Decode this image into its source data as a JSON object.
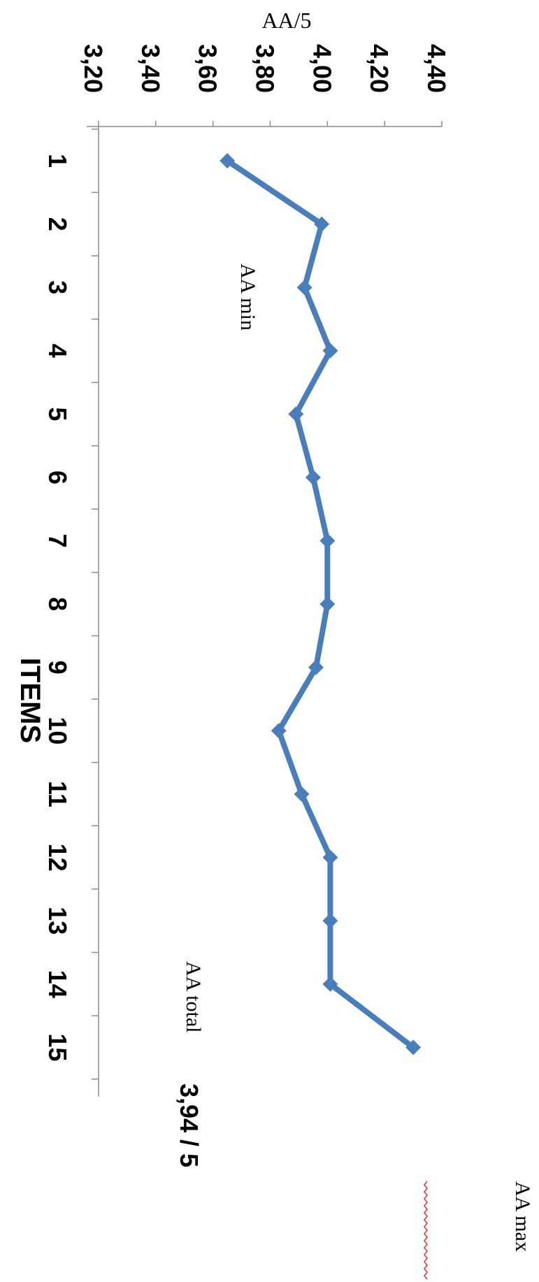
{
  "chart_data": {
    "type": "line",
    "orientation": "rotated-90-clockwise",
    "xlabel": "ITEMS",
    "ylabel": "AA/5",
    "categories": [
      "1",
      "2",
      "3",
      "4",
      "5",
      "6",
      "7",
      "8",
      "9",
      "10",
      "11",
      "12",
      "13",
      "14",
      "15"
    ],
    "series": [
      {
        "values": [
          3.65,
          3.98,
          3.92,
          4.01,
          3.89,
          3.95,
          4.0,
          4.0,
          3.96,
          3.83,
          3.91,
          4.01,
          4.01,
          4.01,
          4.3
        ],
        "color": "#4a7ebb",
        "marker": "diamond"
      }
    ],
    "ylim": [
      3.2,
      4.4
    ],
    "y_ticks": [
      "3,20",
      "3,40",
      "3,60",
      "3,80",
      "4,00",
      "4,20",
      "4,40"
    ],
    "y_tick_values": [
      3.2,
      3.4,
      3.6,
      3.8,
      4.0,
      4.2,
      4.4
    ],
    "grid": false,
    "annotations": {
      "aa_min": "AA min",
      "aa_total": "AA total",
      "aa_total_value": "3,94 / 5",
      "aa_max": "AA max"
    }
  }
}
